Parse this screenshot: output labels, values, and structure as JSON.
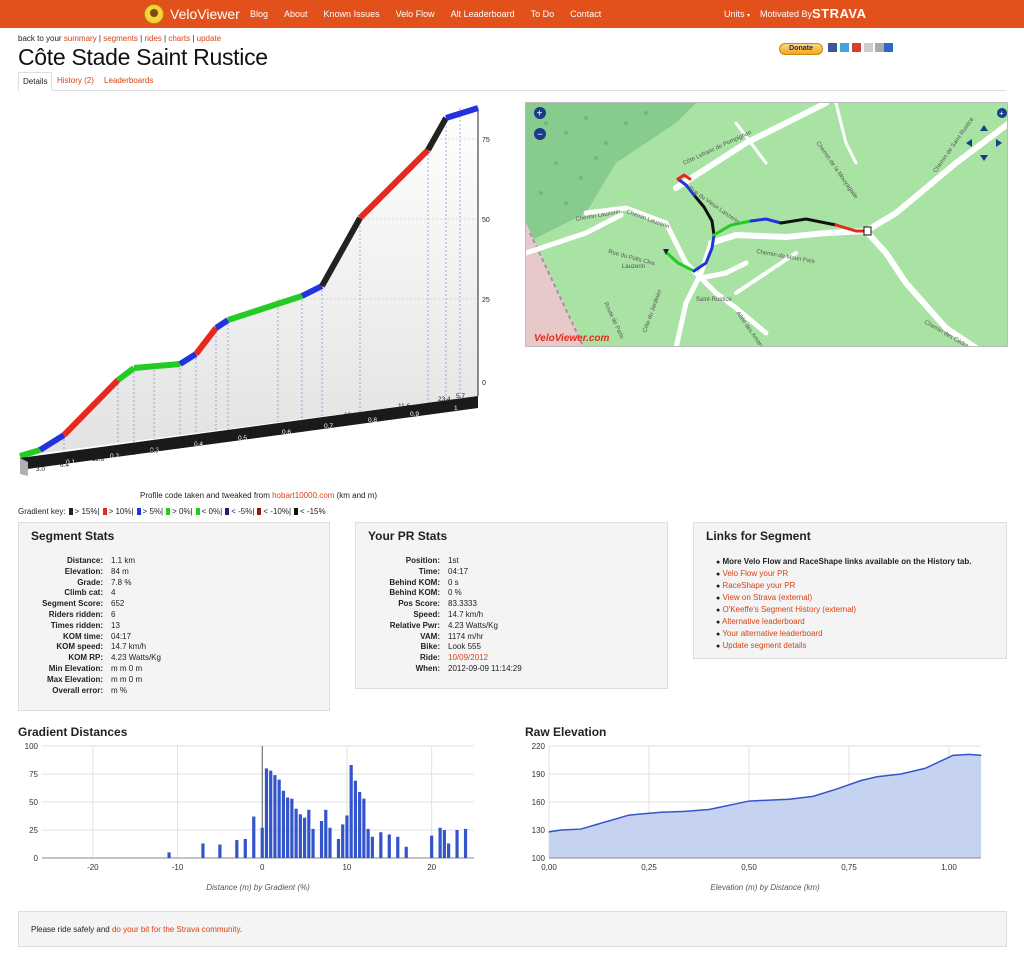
{
  "nav": {
    "brand": "VeloViewer",
    "menu": [
      "Blog",
      "About",
      "Known Issues",
      "Velo Flow",
      "Alt Leaderboard",
      "To Do",
      "Contact"
    ],
    "units": "Units",
    "motivated": "Motivated By",
    "strava": "STRAVA"
  },
  "breadcrumb": {
    "prefix": "back to your",
    "links": [
      "summary",
      "segments",
      "rides",
      "charts",
      "update"
    ]
  },
  "title": "Côte Stade Saint Rustice",
  "donate": "Donate",
  "tabs": [
    "Details",
    "History (2)",
    "Leaderboards"
  ],
  "profile": {
    "credit_prefix": "Profile code taken and tweaked from",
    "credit_link": "hobart10000.com",
    "credit_suffix": "(km and m)",
    "y_ticks": [
      "75",
      "50",
      "25",
      "0"
    ],
    "km_ticks": [
      "0.1",
      "0.2",
      "0.3",
      "0.4",
      "0.5",
      "0.6",
      "0.7",
      "0.8",
      "0.9",
      "1"
    ],
    "grades": [
      "3.0",
      "6.4",
      "11.6",
      "4.7",
      "0.7",
      "7.9",
      "14.9",
      "7.4",
      "2.8",
      "0.5",
      "-0.2",
      "5.1",
      "18.1",
      "11.6",
      "23.4",
      "5.7"
    ]
  },
  "gradient_key": {
    "label": "Gradient key:",
    "items": [
      {
        "label": "> 15%",
        "color": "#222222"
      },
      {
        "label": "> 10%",
        "color": "#e8281c"
      },
      {
        "label": "> 5%",
        "color": "#2233dd"
      },
      {
        "label": "> 0%",
        "color": "#22cc22"
      },
      {
        "label": "< 0%",
        "color": "#22cc22"
      },
      {
        "label": "< -5%",
        "color": "#1a237e"
      },
      {
        "label": "< -10%",
        "color": "#8b1a10"
      },
      {
        "label": "< -15%",
        "color": "#111111"
      }
    ]
  },
  "map": {
    "labels": [
      "Côte Lefranc de Pompignan",
      "Chemin de la Mouyagade",
      "Chemin de Saint Rustice",
      "Chemin Lauzerin",
      "Chemin de Moun Païs",
      "Rue du Puits Clos",
      "Lauzerin",
      "Saint-Rustice",
      "Côte du Jardinier",
      "Route de Paris",
      "Allée des Amandiers",
      "Chemin des Cèdres",
      "Chemin Lauzerin",
      "Rue du Vieux Lanzerin"
    ],
    "watermark": "VeloViewer.com"
  },
  "segment_stats": {
    "title": "Segment Stats",
    "rows": [
      {
        "label": "Distance:",
        "value": "1.1 km"
      },
      {
        "label": "Elevation:",
        "value": "84 m"
      },
      {
        "label": "Grade:",
        "value": "7.8 %"
      },
      {
        "label": "Climb cat:",
        "value": "4"
      },
      {
        "label": "Segment Score:",
        "value": "652"
      },
      {
        "label": "Riders ridden:",
        "value": "6"
      },
      {
        "label": "Times ridden:",
        "value": "13"
      },
      {
        "label": "KOM time:",
        "value": "04:17"
      },
      {
        "label": "KOM speed:",
        "value": "14.7 km/h"
      },
      {
        "label": "KOM RP:",
        "value": "4.23 Watts/Kg"
      },
      {
        "label": "Min Elevation:",
        "value": "m   m   0 m"
      },
      {
        "label": "Max Elevation:",
        "value": "m   m   0 m"
      },
      {
        "label": "Overall error:",
        "value": "m   %"
      }
    ]
  },
  "pr_stats": {
    "title": "Your PR Stats",
    "rows": [
      {
        "label": "Position:",
        "value": "1st"
      },
      {
        "label": "Time:",
        "value": "04:17"
      },
      {
        "label": "Behind KOM:",
        "value": "0 s"
      },
      {
        "label": "Behind KOM:",
        "value": "0 %"
      },
      {
        "label": "Pos Score:",
        "value": "83.3333"
      },
      {
        "label": "Speed:",
        "value": "14.7 km/h"
      },
      {
        "label": "Relative Pwr:",
        "value": "4.23 Watts/Kg"
      },
      {
        "label": "VAM:",
        "value": "1174 m/hr"
      },
      {
        "label": "Bike:",
        "value": "Look 555"
      },
      {
        "label": "Ride:",
        "value": "10/09/2012"
      },
      {
        "label": "When:",
        "value": "2012-09-09 11:14:29"
      }
    ]
  },
  "links": {
    "title": "Links for Segment",
    "note": "More Velo Flow and RaceShape links available on the History tab.",
    "items": [
      "Velo Flow your PR",
      "RaceShape your PR",
      "View on Strava (external)",
      "O'Keeffe's Segment History (external)",
      "Alternative leaderboard",
      "Your alternative leaderboard",
      "Update segment details"
    ]
  },
  "chart_data": [
    {
      "type": "bar",
      "title": "Gradient Distances",
      "xlabel": "Distance (m) by Gradient (%)",
      "ylabel": "",
      "xlim": [
        -26,
        25
      ],
      "ylim": [
        0,
        100
      ],
      "x_ticks": [
        -20,
        -10,
        0,
        10,
        20
      ],
      "y_ticks": [
        0,
        25,
        50,
        75,
        100
      ],
      "x": [
        -11,
        -7,
        -5,
        -3,
        -2,
        -1,
        0,
        0.5,
        1,
        1.5,
        2,
        2.5,
        3,
        3.5,
        4,
        4.5,
        5,
        5.5,
        6,
        7,
        7.5,
        8,
        9,
        9.5,
        10,
        10.5,
        11,
        11.5,
        12,
        12.5,
        13,
        14,
        15,
        16,
        17,
        20,
        21,
        21.5,
        22,
        23,
        24
      ],
      "values": [
        5,
        13,
        12,
        16,
        17,
        37,
        27,
        80,
        78,
        74,
        70,
        60,
        54,
        53,
        44,
        39,
        36,
        43,
        26,
        33,
        43,
        27,
        17,
        30,
        38,
        83,
        69,
        59,
        53,
        26,
        19,
        23,
        21,
        19,
        10,
        20,
        27,
        25,
        13,
        25,
        26
      ]
    },
    {
      "type": "area",
      "title": "Raw Elevation",
      "xlabel": "Elevation (m) by Distance (km)",
      "ylabel": "",
      "xlim": [
        0,
        1.08
      ],
      "ylim": [
        100,
        220
      ],
      "x_ticks": [
        "0,00",
        "0,25",
        "0,50",
        "0,75",
        "1,00"
      ],
      "y_ticks": [
        100,
        130,
        160,
        190,
        220
      ],
      "x": [
        0,
        0.03,
        0.08,
        0.12,
        0.2,
        0.28,
        0.34,
        0.4,
        0.5,
        0.6,
        0.66,
        0.72,
        0.78,
        0.82,
        0.88,
        0.94,
        0.98,
        1.01,
        1.05,
        1.08
      ],
      "values": [
        128,
        130,
        131,
        136,
        146,
        149,
        150,
        152,
        161,
        163,
        166,
        174,
        183,
        187,
        190,
        196,
        204,
        210,
        211,
        210
      ]
    }
  ],
  "footer": {
    "prefix": "Please ride safely and",
    "link": "do your bit for the Strava community",
    "suffix": "."
  }
}
